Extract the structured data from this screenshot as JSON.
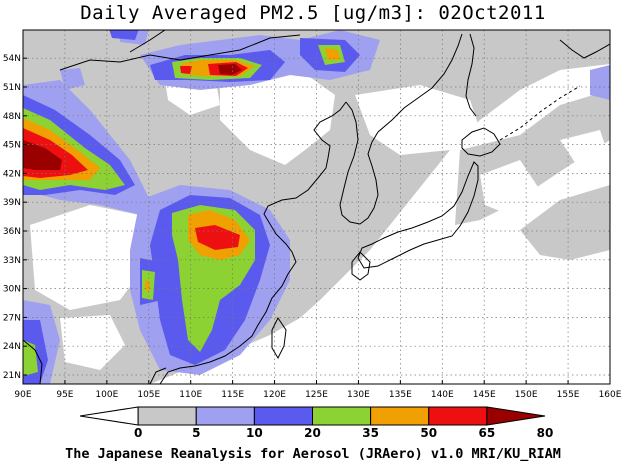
{
  "title": "Daily Averaged PM2.5 [ug/m3]: 02Oct2011",
  "footer": "The Japanese Reanalysis for Aerosol (JRAero) v1.0 MRI/KU_RIAM",
  "map": {
    "lon_labels": [
      "90E",
      "95E",
      "100E",
      "105E",
      "110E",
      "115E",
      "120E",
      "125E",
      "130E",
      "135E",
      "140E",
      "145E",
      "150E",
      "155E",
      "160E"
    ],
    "lat_labels": [
      "21N",
      "24N",
      "27N",
      "30N",
      "33N",
      "36N",
      "39N",
      "42N",
      "45N",
      "48N",
      "51N",
      "54N"
    ]
  },
  "colorbar": {
    "tick_labels": [
      "0",
      "5",
      "10",
      "20",
      "35",
      "50",
      "65",
      "80"
    ],
    "colors": [
      "#ffffff",
      "#c8c8c8",
      "#a0a0f0",
      "#5a5aee",
      "#8cd232",
      "#f0a000",
      "#ee1010",
      "#9b0000"
    ]
  }
}
